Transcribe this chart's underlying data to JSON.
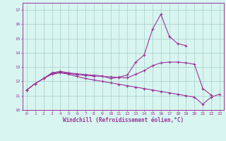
{
  "xlabel": "Windchill (Refroidissement éolien,°C)",
  "x": [
    0,
    1,
    2,
    3,
    4,
    5,
    6,
    7,
    8,
    9,
    10,
    11,
    12,
    13,
    14,
    15,
    16,
    17,
    18,
    19,
    20,
    21,
    22,
    23
  ],
  "line_bottom": [
    11.4,
    11.85,
    12.2,
    12.5,
    12.6,
    12.5,
    12.35,
    12.2,
    12.1,
    12.0,
    11.9,
    11.8,
    11.7,
    11.6,
    11.5,
    11.4,
    11.3,
    11.2,
    11.1,
    11.0,
    10.9,
    10.4,
    10.9,
    11.1
  ],
  "line_mid": [
    11.4,
    11.85,
    12.2,
    12.55,
    12.65,
    12.55,
    12.48,
    12.42,
    12.38,
    12.35,
    12.32,
    12.28,
    12.25,
    12.5,
    12.75,
    13.1,
    13.3,
    13.35,
    13.35,
    13.3,
    13.2,
    11.5,
    11.05,
    null
  ],
  "line_top": [
    11.4,
    11.85,
    12.2,
    12.6,
    12.7,
    12.6,
    12.53,
    12.48,
    12.43,
    12.38,
    12.2,
    12.3,
    12.45,
    13.35,
    13.85,
    15.65,
    16.7,
    15.15,
    14.65,
    14.5,
    null,
    null,
    null,
    null
  ],
  "ylim": [
    10,
    17.5
  ],
  "xlim_min": -0.5,
  "xlim_max": 23.5,
  "yticks": [
    10,
    11,
    12,
    13,
    14,
    15,
    16,
    17
  ],
  "line_color": "#993399",
  "bg_color": "#d8f5f0",
  "grid_color": "#aacccc",
  "spine_color": "#993399",
  "tick_label_color": "#993399",
  "xlabel_color": "#993399",
  "marker": "+",
  "markersize": 3.5,
  "linewidth": 0.8,
  "xlabel_fontsize": 5.5,
  "tick_fontsize": 4.5
}
